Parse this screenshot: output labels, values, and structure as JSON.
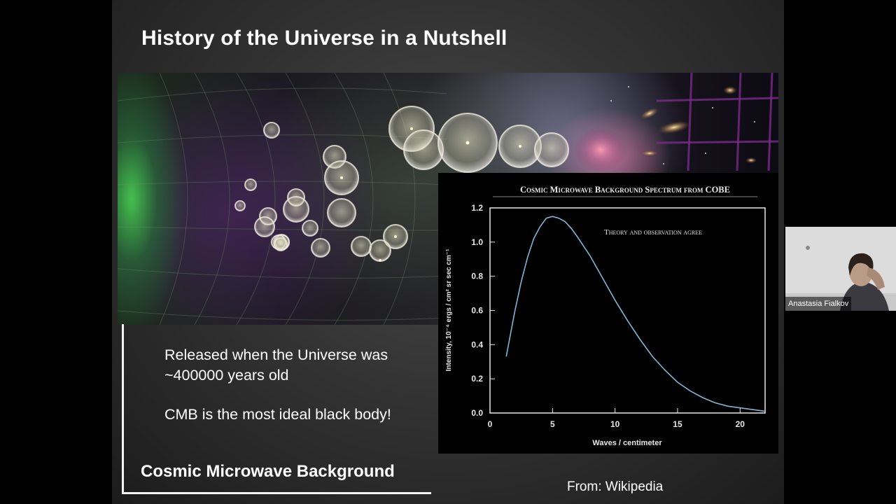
{
  "slide": {
    "title": "History of the Universe in a Nutshell",
    "text_panel": {
      "released_text": "Released when the Universe was ~400000 years old",
      "cmb_text": "CMB is the most ideal black body!",
      "caption": "Cosmic Microwave Background"
    },
    "source_note": "From: Wikipedia"
  },
  "chart_data": {
    "type": "line",
    "title": "Cosmic Microwave Background Spectrum from COBE",
    "annotation": "Theory and observation agree",
    "xlabel": "Waves / centimeter",
    "ylabel": "Intensity, 10⁻⁴ ergs / cm² sr sec cm⁻¹",
    "xlim": [
      0,
      22
    ],
    "ylim": [
      0,
      1.2
    ],
    "x_ticks": [
      0,
      5,
      10,
      15,
      20
    ],
    "y_ticks": [
      "0.0",
      "0.2",
      "0.4",
      "0.6",
      "0.8",
      "1.0",
      "1.2"
    ],
    "series": [
      {
        "x": [
          1.3,
          2,
          2.5,
          3,
          3.5,
          4,
          4.5,
          5,
          5.5,
          6,
          6.5,
          7,
          8,
          9,
          10,
          11,
          12,
          13,
          14,
          15,
          16,
          17,
          18,
          19,
          20,
          21,
          22
        ],
        "y": [
          0.33,
          0.6,
          0.77,
          0.91,
          1.02,
          1.09,
          1.14,
          1.15,
          1.14,
          1.12,
          1.08,
          1.03,
          0.92,
          0.79,
          0.66,
          0.54,
          0.43,
          0.33,
          0.25,
          0.18,
          0.13,
          0.09,
          0.06,
          0.04,
          0.03,
          0.02,
          0.01
        ]
      }
    ],
    "line_color": "#7fb6d6",
    "grid": false
  },
  "participant": {
    "name": "Anastasia Fialkov"
  }
}
